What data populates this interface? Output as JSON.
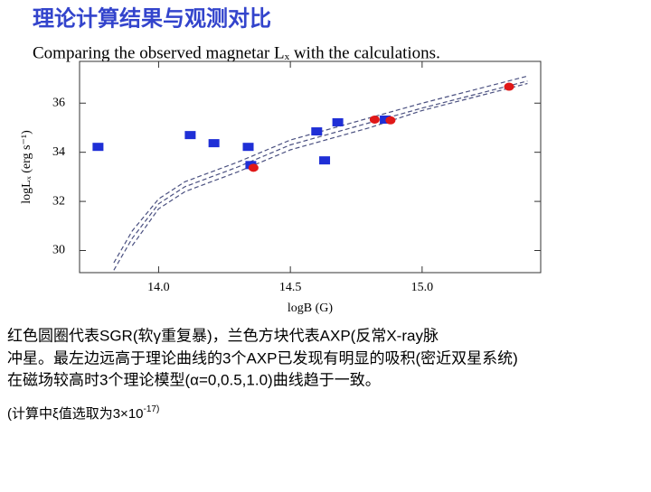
{
  "slide_title": "理论计算结果与观测对比",
  "caption": [
    "红色圆圈代表SGR(软γ重复暴)，兰色方块代表AXP(反常X-ray脉",
    "冲星。最左边远高于理论曲线的3个AXP已发现有明显的吸积(密近双星系统)",
    "在磁场较高时3个理论模型(α=0,0.5,1.0)曲线趋于一致。"
  ],
  "footnote": {
    "text": "(计算中ξ值选取为3×10",
    "superscript": "-17)"
  },
  "chart_data": {
    "type": "scatter",
    "title": "Comparing the observed magnetar Lₓ with the calculations.",
    "x_label": "logB (G)",
    "y_label": "logLₓ (erg s⁻¹)",
    "xlim": [
      13.7,
      15.45
    ],
    "ylim": [
      29.1,
      37.7
    ],
    "xticks": [
      {
        "value": 14,
        "label": "14.0"
      },
      {
        "value": 14.5,
        "label": "14.5"
      },
      {
        "value": 15,
        "label": "15.0"
      }
    ],
    "yticks": [
      30,
      32,
      34,
      36
    ],
    "series": [
      {
        "type": "line",
        "color": "#4a5080",
        "x": [
          13.83,
          13.9,
          14.0,
          14.1,
          14.3,
          14.5,
          14.8,
          15.0,
          15.4
        ],
        "values": [
          29.5,
          30.8,
          32.1,
          32.8,
          33.6,
          34.5,
          35.4,
          36.0,
          37.1
        ]
      },
      {
        "type": "line",
        "color": "#4a5080",
        "x": [
          13.83,
          13.9,
          14.0,
          14.1,
          14.3,
          14.5,
          14.8,
          15.0,
          15.4
        ],
        "values": [
          29.2,
          30.5,
          31.9,
          32.6,
          33.4,
          34.3,
          35.2,
          35.8,
          36.9
        ]
      },
      {
        "type": "line",
        "color": "#4a5080",
        "x": [
          13.83,
          13.9,
          14.0,
          14.1,
          14.3,
          14.5,
          14.8,
          15.0,
          15.4
        ],
        "values": [
          null,
          30.2,
          31.7,
          32.4,
          33.2,
          34.1,
          35.0,
          35.7,
          36.8
        ]
      },
      {
        "type": "scatter",
        "marker": "square",
        "color": "#1f2fd6",
        "x": [
          13.77,
          14.12,
          14.21,
          14.34,
          14.35,
          14.6,
          14.68,
          14.63,
          14.86
        ],
        "values": [
          34.22,
          34.7,
          34.37,
          34.22,
          33.48,
          34.85,
          35.22,
          33.67,
          35.33
        ]
      },
      {
        "type": "scatter",
        "marker": "circle",
        "color": "#e01818",
        "x": [
          14.36,
          14.82,
          14.88,
          15.33
        ],
        "values": [
          33.37,
          35.33,
          35.3,
          36.67
        ]
      }
    ]
  }
}
